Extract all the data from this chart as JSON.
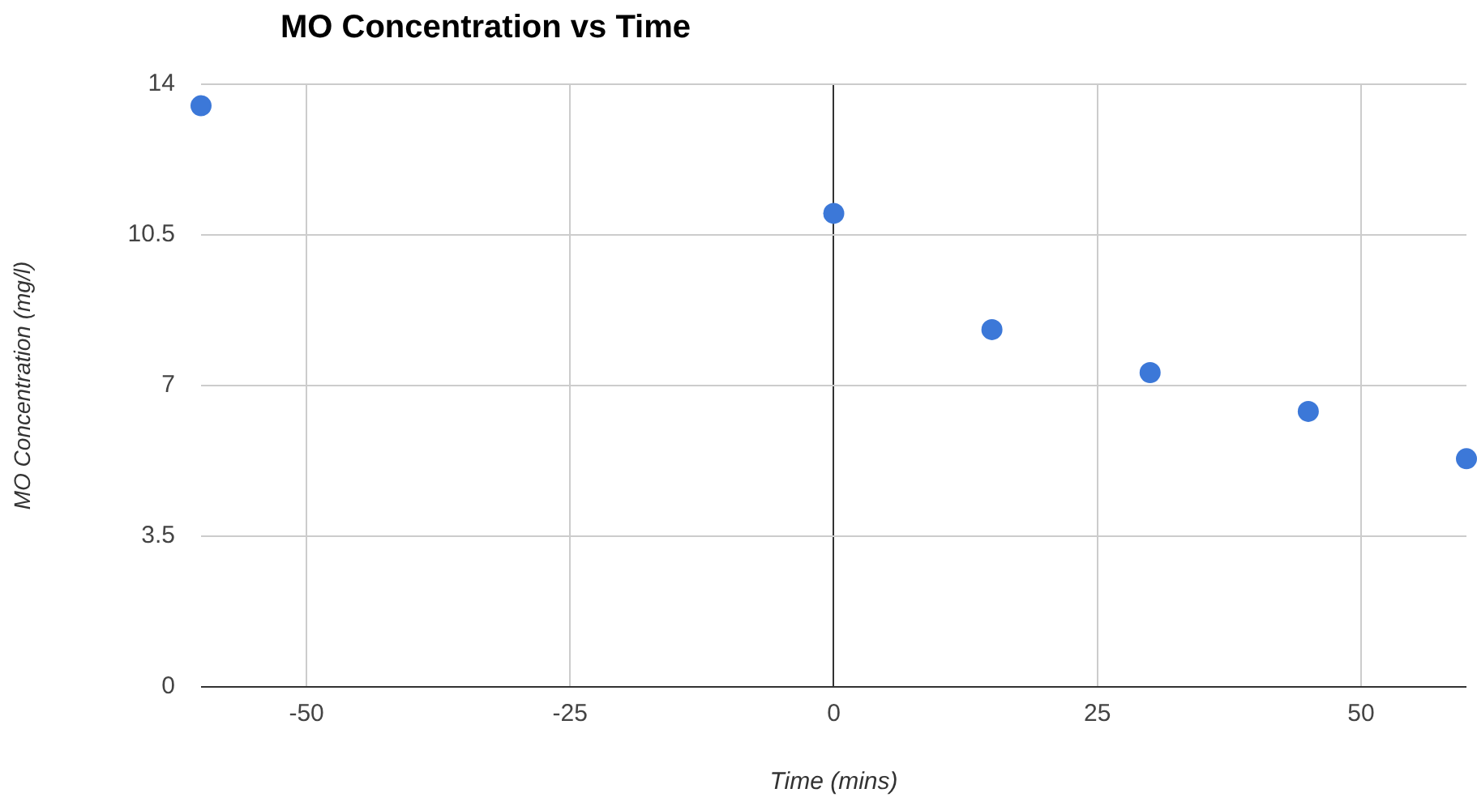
{
  "chart_data": {
    "type": "scatter",
    "title": "MO Concentration vs Time",
    "xlabel": "Time (mins)",
    "ylabel": "MO Concentration (mg/l)",
    "x": [
      -60,
      0,
      15,
      30,
      45,
      60
    ],
    "series": [
      {
        "color": "#3c78d8",
        "values": [
          13.5,
          11.0,
          8.3,
          7.3,
          6.4,
          5.3
        ]
      }
    ],
    "xlim": [
      -60,
      60
    ],
    "xticks": [
      -50,
      -25,
      0,
      25,
      50
    ],
    "ylim": [
      0,
      14
    ],
    "yticks": [
      0,
      3.5,
      7,
      10.5,
      14
    ],
    "grid": true,
    "legend": false,
    "marker": "circle"
  }
}
